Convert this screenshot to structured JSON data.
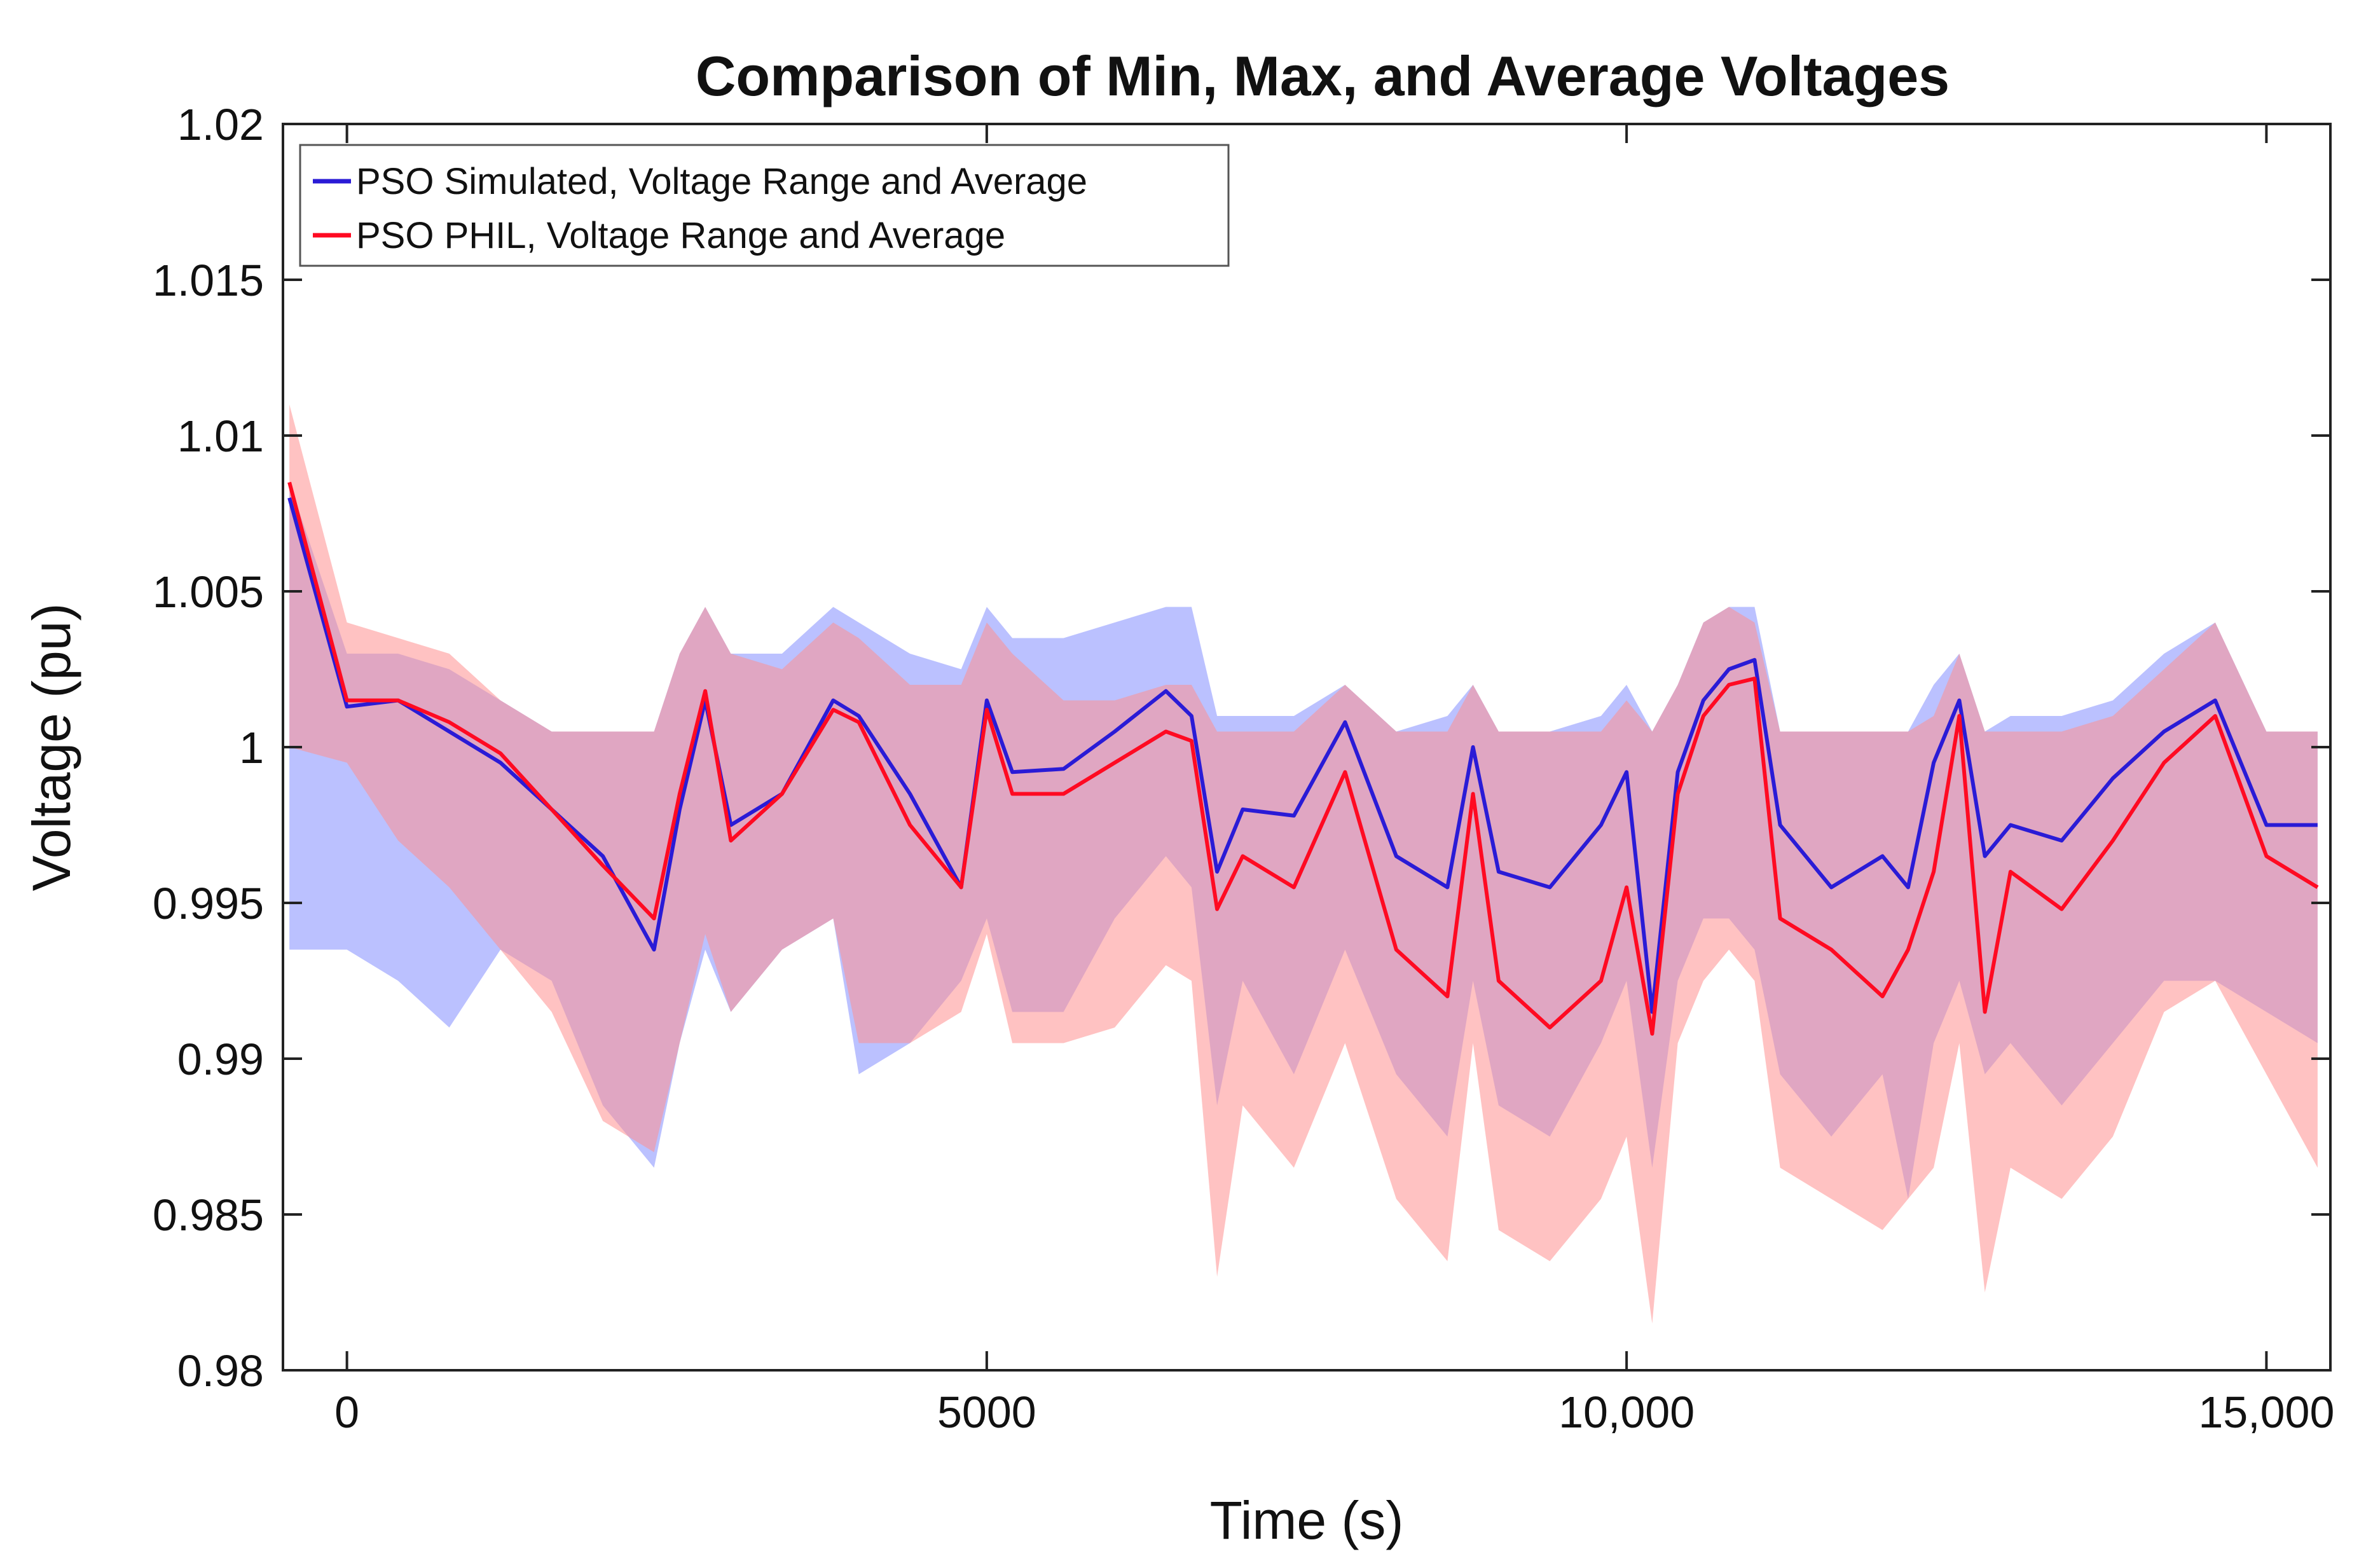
{
  "chart_data": {
    "type": "area",
    "title": "Comparison of Min, Max, and Average Voltages",
    "xlabel": "Time (s)",
    "ylabel": "Voltage (pu)",
    "xlim": [
      -500,
      15500
    ],
    "ylim": [
      0.98,
      1.02
    ],
    "xticks": [
      0,
      5000,
      10000,
      15000
    ],
    "xtick_labels": [
      "0",
      "5000",
      "10,000",
      "15,000"
    ],
    "yticks": [
      0.98,
      0.985,
      0.99,
      0.995,
      1.0,
      1.005,
      1.01,
      1.015,
      1.02
    ],
    "ytick_labels": [
      "0.98",
      "0.985",
      "0.99",
      "0.995",
      "1",
      "1.005",
      "1.01",
      "1.015",
      "1.02"
    ],
    "legend_position": "top-left",
    "x": [
      -450,
      0,
      400,
      800,
      1200,
      1600,
      2000,
      2400,
      2600,
      2800,
      3000,
      3400,
      3800,
      4000,
      4400,
      4800,
      5000,
      5200,
      5600,
      6000,
      6400,
      6600,
      6800,
      7000,
      7400,
      7800,
      8200,
      8600,
      8800,
      9000,
      9400,
      9800,
      10000,
      10200,
      10400,
      10600,
      10800,
      11000,
      11200,
      11600,
      12000,
      12200,
      12400,
      12600,
      12800,
      13000,
      13400,
      13800,
      14200,
      14600,
      15000,
      15400
    ],
    "series": [
      {
        "name": "PSO Simulated, Voltage Range and Average",
        "color": "#2a1bd6",
        "band_color": "#8d97ff",
        "avg": [
          1.008,
          1.0013,
          1.0015,
          1.0005,
          0.9995,
          0.998,
          0.9965,
          0.9935,
          0.998,
          1.0015,
          0.9975,
          0.9985,
          1.0015,
          1.001,
          0.9985,
          0.9955,
          1.0015,
          0.9992,
          0.9993,
          1.0005,
          1.0018,
          1.001,
          0.996,
          0.998,
          0.9978,
          1.0008,
          0.9965,
          0.9955,
          1.0,
          0.996,
          0.9955,
          0.9975,
          0.9992,
          0.9915,
          0.9992,
          1.0015,
          1.0025,
          1.0028,
          0.9975,
          0.9955,
          0.9965,
          0.9955,
          0.9995,
          1.0015,
          0.9965,
          0.9975,
          0.997,
          0.999,
          1.0005,
          1.0015,
          0.9975,
          0.9975
        ],
        "min": [
          0.9935,
          0.9935,
          0.9925,
          0.991,
          0.9935,
          0.9925,
          0.9885,
          0.9865,
          0.9905,
          0.9935,
          0.9915,
          0.9935,
          0.9945,
          0.9895,
          0.9905,
          0.9925,
          0.9945,
          0.9915,
          0.9915,
          0.9945,
          0.9965,
          0.9955,
          0.9885,
          0.9925,
          0.9895,
          0.9935,
          0.9895,
          0.9875,
          0.9925,
          0.9885,
          0.9875,
          0.9905,
          0.9925,
          0.9865,
          0.9925,
          0.9945,
          0.9945,
          0.9935,
          0.9895,
          0.9875,
          0.9895,
          0.9855,
          0.9905,
          0.9925,
          0.9895,
          0.9905,
          0.9885,
          0.9905,
          0.9925,
          0.9925,
          0.9915,
          0.9905
        ],
        "max": [
          1.0085,
          1.003,
          1.003,
          1.0025,
          1.0015,
          1.0005,
          1.0005,
          1.0005,
          1.003,
          1.0045,
          1.003,
          1.003,
          1.0045,
          1.004,
          1.003,
          1.0025,
          1.0045,
          1.0035,
          1.0035,
          1.004,
          1.0045,
          1.0045,
          1.001,
          1.001,
          1.001,
          1.002,
          1.0005,
          1.001,
          1.002,
          1.0005,
          1.0005,
          1.001,
          1.002,
          1.0005,
          1.002,
          1.004,
          1.0045,
          1.0045,
          1.0005,
          1.0005,
          1.0005,
          1.0005,
          1.002,
          1.003,
          1.0005,
          1.001,
          1.001,
          1.0015,
          1.003,
          1.004,
          1.0005,
          1.0005
        ]
      },
      {
        "name": "PSO PHIL, Voltage Range and Average",
        "color": "#ff0a22",
        "band_color": "#ff8f8f",
        "avg": [
          1.0085,
          1.0015,
          1.0015,
          1.0008,
          0.9998,
          0.998,
          0.9962,
          0.9945,
          0.9985,
          1.0018,
          0.997,
          0.9985,
          1.0012,
          1.0008,
          0.9975,
          0.9955,
          1.0012,
          0.9985,
          0.9985,
          0.9995,
          1.0005,
          1.0002,
          0.9948,
          0.9965,
          0.9955,
          0.9992,
          0.9935,
          0.992,
          0.9985,
          0.9925,
          0.991,
          0.9925,
          0.9955,
          0.9908,
          0.9985,
          1.001,
          1.002,
          1.0022,
          0.9945,
          0.9935,
          0.992,
          0.9935,
          0.996,
          1.001,
          0.9915,
          0.996,
          0.9948,
          0.997,
          0.9995,
          1.001,
          0.9965,
          0.9955
        ],
        "min": [
          1.0,
          0.9995,
          0.997,
          0.9955,
          0.9935,
          0.9915,
          0.988,
          0.987,
          0.9905,
          0.994,
          0.9915,
          0.9935,
          0.9945,
          0.9905,
          0.9905,
          0.9915,
          0.994,
          0.9905,
          0.9905,
          0.991,
          0.993,
          0.9925,
          0.983,
          0.9885,
          0.9865,
          0.9905,
          0.9855,
          0.9835,
          0.9905,
          0.9845,
          0.9835,
          0.9855,
          0.9875,
          0.9815,
          0.9905,
          0.9925,
          0.9935,
          0.9925,
          0.9865,
          0.9855,
          0.9845,
          0.9855,
          0.9865,
          0.9905,
          0.9825,
          0.9865,
          0.9855,
          0.9875,
          0.9915,
          0.9925,
          0.9895,
          0.9865
        ],
        "max": [
          1.011,
          1.004,
          1.0035,
          1.003,
          1.0015,
          1.0005,
          1.0005,
          1.0005,
          1.003,
          1.0045,
          1.003,
          1.0025,
          1.004,
          1.0035,
          1.002,
          1.002,
          1.004,
          1.003,
          1.0015,
          1.0015,
          1.002,
          1.002,
          1.0005,
          1.0005,
          1.0005,
          1.002,
          1.0005,
          1.0005,
          1.002,
          1.0005,
          1.0005,
          1.0005,
          1.0015,
          1.0005,
          1.002,
          1.004,
          1.0045,
          1.004,
          1.0005,
          1.0005,
          1.0005,
          1.0005,
          1.001,
          1.003,
          1.0005,
          1.0005,
          1.0005,
          1.001,
          1.0025,
          1.004,
          1.0005,
          1.0005
        ]
      }
    ]
  }
}
